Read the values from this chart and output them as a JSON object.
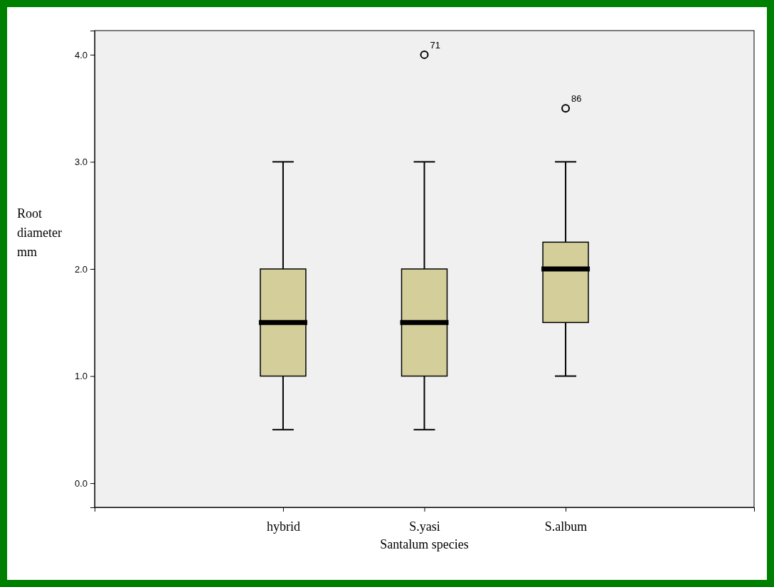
{
  "chart_data": {
    "type": "box",
    "xlabel": "Santalum species",
    "ylabel": "Root diameter mm",
    "categories": [
      "hybrid",
      "S.yasi",
      "S.album"
    ],
    "color": "#d3ce9a",
    "boxes": [
      {
        "low": 0.5,
        "q1": 1.0,
        "median": 1.5,
        "q3": 2.0,
        "high": 3.0
      },
      {
        "low": 0.5,
        "q1": 1.0,
        "median": 1.5,
        "q3": 2.0,
        "high": 3.0,
        "outliers": [
          4.0
        ]
      },
      {
        "low": 1.0,
        "q1": 1.5,
        "median": 2.0,
        "q3": 2.25,
        "high": 3.0,
        "outliers": [
          3.5
        ]
      }
    ],
    "annotations": [
      "71",
      "86"
    ],
    "ylim": [
      -0.225,
      4.225
    ],
    "yticks": [
      {
        "value": 0,
        "label": "0.0"
      },
      {
        "value": 1,
        "label": "1.0"
      },
      {
        "value": 2,
        "label": "2.0"
      },
      {
        "value": 3,
        "label": "3.0"
      },
      {
        "value": 4,
        "label": "4.0"
      }
    ],
    "grid": false
  }
}
